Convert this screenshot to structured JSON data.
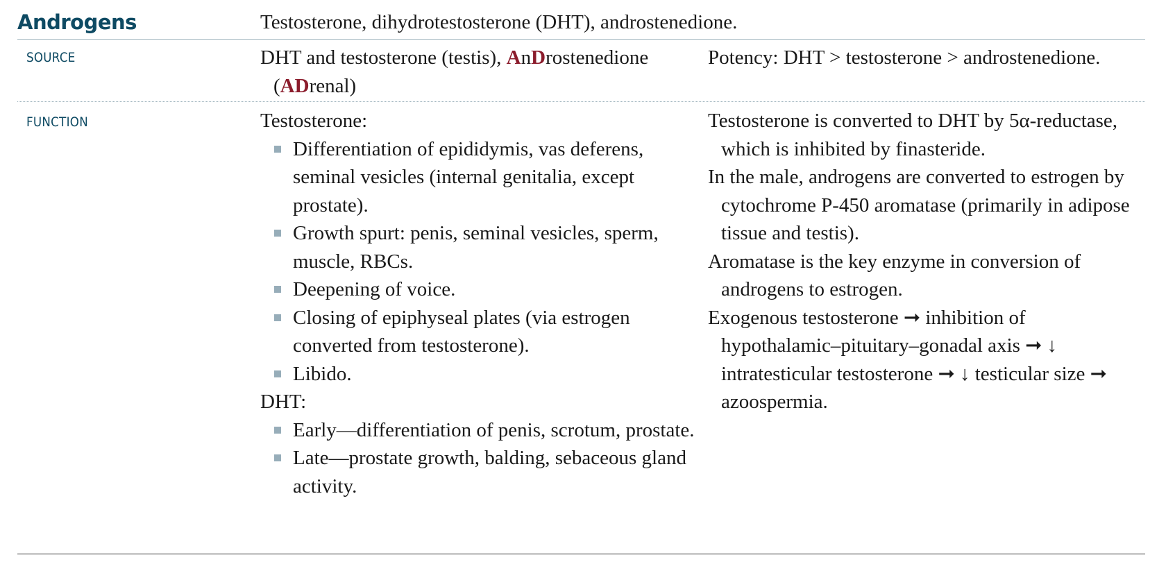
{
  "title": "Androgens",
  "header_text": "Testosterone, dihydrotestosterone (DHT), androstenedione.",
  "source": {
    "label": "SOURCE",
    "mid": {
      "p1": "DHT and testosterone (testis), ",
      "hl1": "A",
      "p2": "n",
      "hl2": "D",
      "p3": "rostenedione (",
      "hl3": "AD",
      "p4": "renal)"
    },
    "right": "Potency: DHT > testosterone > androstenedione."
  },
  "function": {
    "label": "FUNCTION",
    "testosterone_heading": "Testosterone:",
    "testosterone_items": [
      "Differentiation of epididymis, vas deferens, seminal vesicles (internal genitalia, except prostate).",
      "Growth spurt: penis, seminal vesicles, sperm, muscle, RBCs.",
      "Deepening of voice.",
      "Closing of epiphyseal plates (via estrogen converted from testosterone).",
      "Libido."
    ],
    "dht_heading": "DHT:",
    "dht_items": [
      "Early—differentiation of penis, scrotum, prostate.",
      "Late—prostate growth, balding, sebaceous gland activity."
    ],
    "right": [
      "Testosterone is converted to DHT by 5α-reductase, which is inhibited by finasteride.",
      "In the male, androgens are converted to estrogen by cytochrome P-450 aromatase (primarily in adipose tissue and testis).",
      "Aromatase is the key enzyme in conversion of androgens to estrogen.",
      "Exogenous testosterone ➞ inhibition of hypothalamic–pituitary–gonadal axis ➞ ↓ intratesticular testosterone ➞ ↓ testicular size ➞ azoospermia."
    ]
  },
  "colors": {
    "title": "#0e4a63",
    "highlight": "#8b1c2c",
    "bullet": "#97adb9",
    "rule": "#9fb3bd"
  }
}
